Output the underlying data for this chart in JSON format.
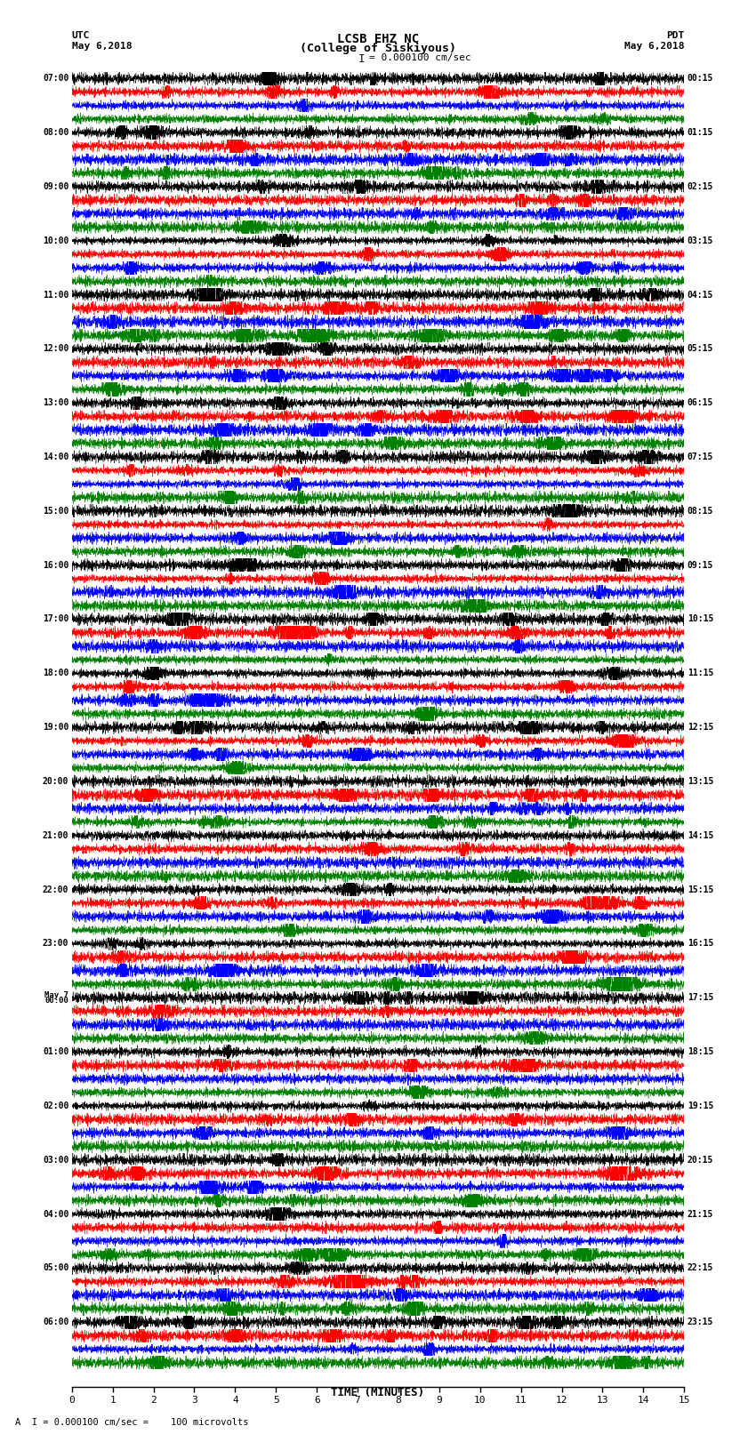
{
  "title_line1": "LCSB EHZ NC",
  "title_line2": "(College of Siskiyous)",
  "scale_label": "I = 0.000100 cm/sec",
  "left_header_line1": "UTC",
  "left_header_line2": "May 6,2018",
  "right_header_line1": "PDT",
  "right_header_line2": "May 6,2018",
  "xlabel": "TIME (MINUTES)",
  "footer": "\\u25b2 I = 0.000100 cm/sec =    100 microvolts",
  "utc_labels": [
    "07:00",
    "08:00",
    "09:00",
    "10:00",
    "11:00",
    "12:00",
    "13:00",
    "14:00",
    "15:00",
    "16:00",
    "17:00",
    "18:00",
    "19:00",
    "20:00",
    "21:00",
    "22:00",
    "23:00",
    "May 7\n00:00",
    "01:00",
    "02:00",
    "03:00",
    "04:00",
    "05:00",
    "06:00"
  ],
  "pdt_labels": [
    "00:15",
    "01:15",
    "02:15",
    "03:15",
    "04:15",
    "05:15",
    "06:15",
    "07:15",
    "08:15",
    "09:15",
    "10:15",
    "11:15",
    "12:15",
    "13:15",
    "14:15",
    "15:15",
    "16:15",
    "17:15",
    "18:15",
    "19:15",
    "20:15",
    "21:15",
    "22:15",
    "23:15"
  ],
  "trace_colors": [
    "black",
    "red",
    "blue",
    "green"
  ],
  "n_traces_per_hour": 4,
  "n_hours": 24,
  "minutes": 15,
  "background_color": "white",
  "figsize": [
    8.5,
    16.13
  ],
  "dpi": 100
}
